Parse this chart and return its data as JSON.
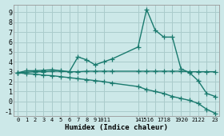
{
  "xlabel": "Humidex (Indice chaleur)",
  "bg_color": "#cce8e8",
  "grid_color": "#aacccc",
  "line_color": "#1a7a6e",
  "xlim": [
    -0.5,
    23.5
  ],
  "ylim": [
    -1.5,
    9.8
  ],
  "yticks": [
    -1,
    0,
    1,
    2,
    3,
    4,
    5,
    6,
    7,
    8,
    9
  ],
  "xtick_positions": [
    0,
    1,
    2,
    3,
    4,
    5,
    6,
    7,
    8,
    9,
    10,
    14,
    15,
    16,
    17,
    18,
    19,
    20,
    21,
    22,
    23
  ],
  "xtick_labels": [
    "0",
    "1",
    "2",
    "3",
    "4",
    "5",
    "6",
    "7",
    "8",
    "9",
    "1011",
    "14",
    "1516",
    "",
    "1718",
    "",
    "1920",
    "",
    "2122",
    "",
    "23"
  ],
  "line1_x": [
    0,
    1,
    2,
    3,
    4,
    5,
    6,
    7,
    8,
    9,
    10,
    11,
    14,
    15,
    16,
    17,
    18,
    19,
    20,
    21,
    22,
    23
  ],
  "line1_y": [
    2.9,
    3.1,
    3.1,
    3.15,
    3.2,
    3.1,
    3.0,
    4.5,
    4.2,
    3.7,
    4.0,
    4.3,
    5.5,
    9.3,
    7.2,
    6.5,
    6.5,
    3.3,
    2.9,
    2.1,
    0.8,
    0.5
  ],
  "line2_x": [
    0,
    1,
    2,
    3,
    4,
    5,
    6,
    7,
    8,
    9,
    10,
    11,
    14,
    15,
    16,
    17,
    18,
    19,
    20,
    21,
    22,
    23
  ],
  "line2_y": [
    2.9,
    2.95,
    3.0,
    3.0,
    3.05,
    3.05,
    3.0,
    3.0,
    3.05,
    3.05,
    3.05,
    3.05,
    3.05,
    3.05,
    3.05,
    3.05,
    3.05,
    3.05,
    3.0,
    3.0,
    3.0,
    3.0
  ],
  "line3_x": [
    0,
    1,
    2,
    3,
    4,
    5,
    6,
    7,
    8,
    9,
    10,
    11,
    14,
    15,
    16,
    17,
    18,
    19,
    20,
    21,
    22,
    23
  ],
  "line3_y": [
    2.9,
    2.8,
    2.75,
    2.65,
    2.6,
    2.5,
    2.4,
    2.3,
    2.2,
    2.1,
    2.0,
    1.85,
    1.5,
    1.2,
    1.0,
    0.8,
    0.5,
    0.3,
    0.1,
    -0.2,
    -0.8,
    -1.2
  ],
  "marker": "+",
  "markersize": 4,
  "linewidth": 1.0
}
